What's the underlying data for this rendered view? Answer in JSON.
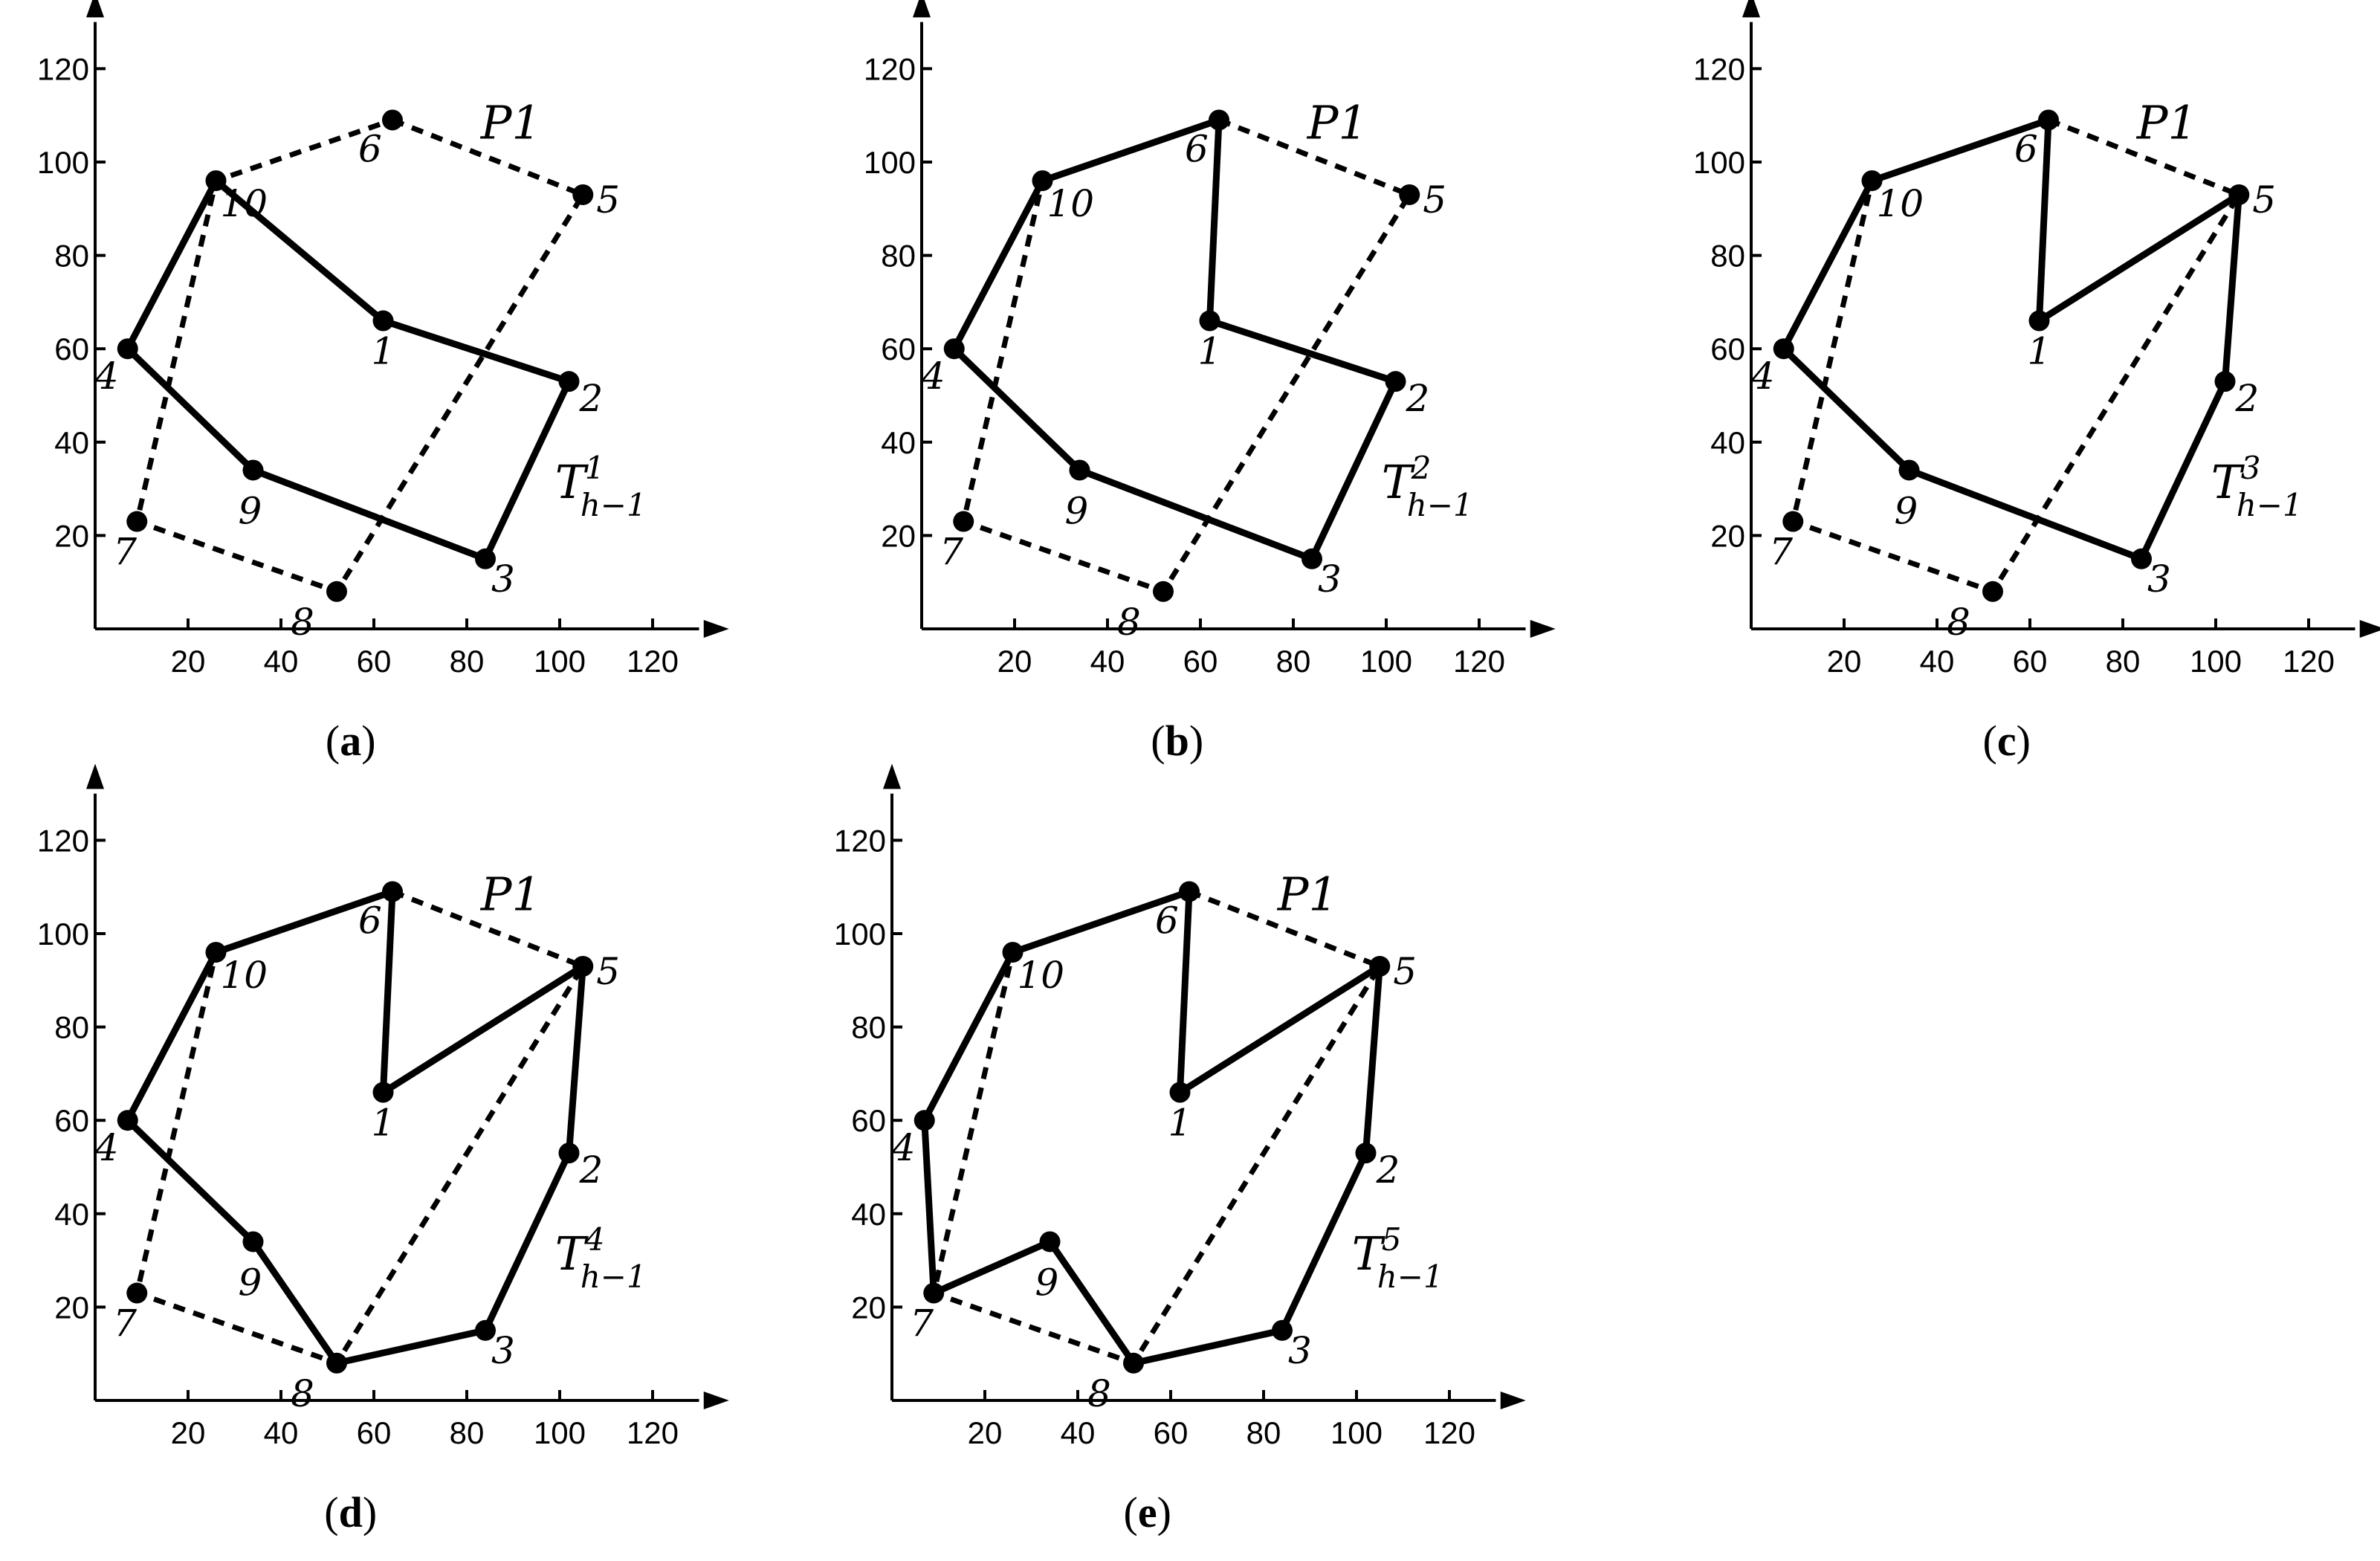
{
  "figure": {
    "axis": {
      "x_ticks": [
        20,
        40,
        60,
        80,
        100,
        120
      ],
      "y_ticks": [
        20,
        40,
        60,
        80,
        100,
        120
      ]
    },
    "points": [
      {
        "id": "1",
        "x": 62,
        "y": 66
      },
      {
        "id": "2",
        "x": 102,
        "y": 53
      },
      {
        "id": "3",
        "x": 84,
        "y": 15
      },
      {
        "id": "4",
        "x": 7,
        "y": 60
      },
      {
        "id": "5",
        "x": 105,
        "y": 93
      },
      {
        "id": "6",
        "x": 64,
        "y": 109
      },
      {
        "id": "7",
        "x": 9,
        "y": 23
      },
      {
        "id": "8",
        "x": 52,
        "y": 8
      },
      {
        "id": "9",
        "x": 34,
        "y": 34
      },
      {
        "id": "10",
        "x": 26,
        "y": 96
      }
    ],
    "polygon_label": "P1",
    "hull": [
      "6",
      "5",
      "8",
      "7",
      "10"
    ],
    "panels": [
      {
        "id": "a",
        "caption_letter": "a",
        "tour_sup": "1",
        "tour": [
          "1",
          "2",
          "3",
          "9",
          "4",
          "10"
        ]
      },
      {
        "id": "b",
        "caption_letter": "b",
        "tour_sup": "2",
        "tour": [
          "1",
          "2",
          "3",
          "9",
          "4",
          "10",
          "6"
        ]
      },
      {
        "id": "c",
        "caption_letter": "c",
        "tour_sup": "3",
        "tour": [
          "1",
          "5",
          "2",
          "3",
          "9",
          "4",
          "10",
          "6"
        ]
      },
      {
        "id": "d",
        "caption_letter": "d",
        "tour_sup": "4",
        "tour": [
          "1",
          "5",
          "2",
          "3",
          "8",
          "9",
          "4",
          "10",
          "6"
        ]
      },
      {
        "id": "e",
        "caption_letter": "e",
        "tour_sup": "5",
        "tour": [
          "1",
          "5",
          "2",
          "3",
          "8",
          "9",
          "7",
          "4",
          "10",
          "6"
        ]
      }
    ],
    "tour_base": "T",
    "tour_sub": "h−1"
  }
}
